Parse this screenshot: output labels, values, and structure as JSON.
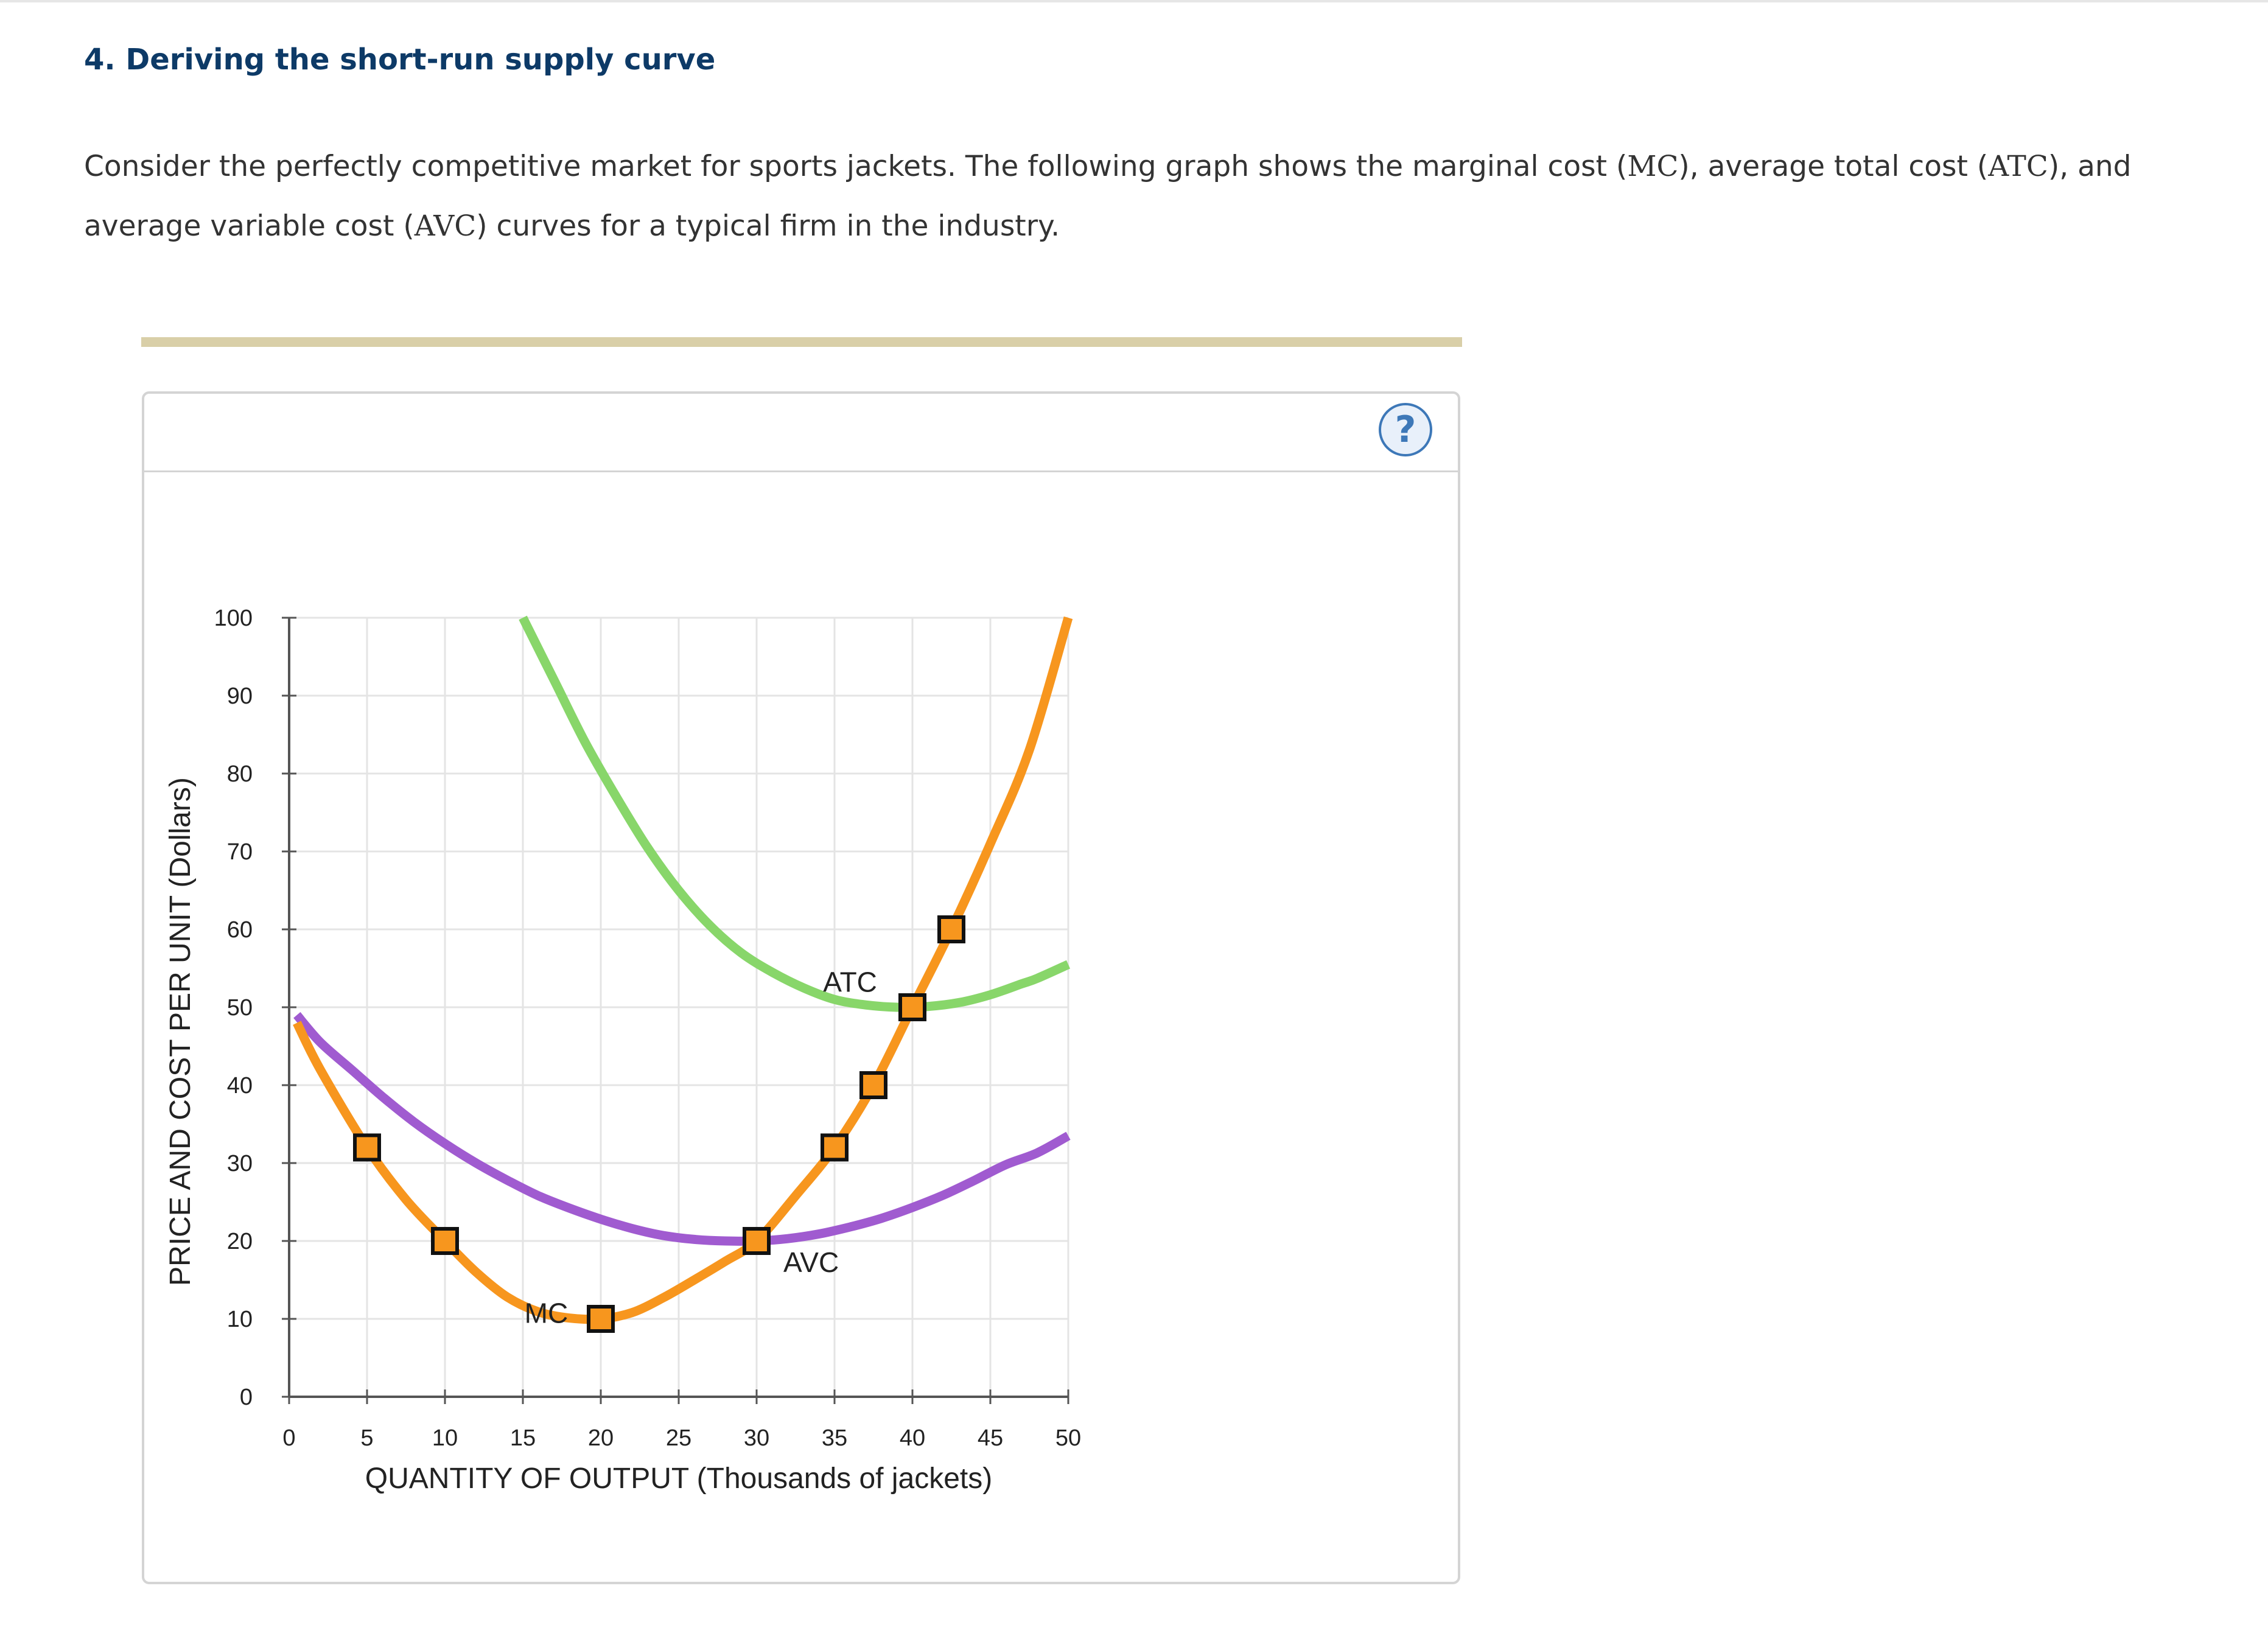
{
  "question": {
    "title": "4. Deriving the short-run supply curve",
    "line1_a": "Consider the perfectly competitive market for sports jackets. The following graph shows the marginal cost (",
    "mc_sym": "MC",
    "line1_b": "), average total cost (",
    "atc_sym": "ATC",
    "line1_c": "), and average variable cost (",
    "avc_sym": "AVC",
    "line1_d": ") curves for a typical firm in the industry."
  },
  "help": {
    "label": "?"
  },
  "chart_data": {
    "type": "line",
    "title": "",
    "xlabel": "QUANTITY OF OUTPUT (Thousands of jackets)",
    "ylabel": "PRICE AND COST PER UNIT (Dollars)",
    "xlim": [
      0,
      50
    ],
    "ylim": [
      0,
      100
    ],
    "x_ticks": [
      0,
      5,
      10,
      15,
      20,
      25,
      30,
      35,
      40,
      45,
      50
    ],
    "y_ticks": [
      0,
      10,
      20,
      30,
      40,
      50,
      60,
      70,
      80,
      90,
      100
    ],
    "grid": true,
    "colors": {
      "MC": "#f7961e",
      "ATC": "#88d66a",
      "AVC": "#a05bd0",
      "marker": "#f7961e"
    },
    "series": [
      {
        "name": "ATC",
        "label_at": [
          36,
          52
        ],
        "points": [
          [
            15,
            100
          ],
          [
            17,
            92
          ],
          [
            19,
            84
          ],
          [
            21,
            77
          ],
          [
            23,
            70.5
          ],
          [
            25,
            65
          ],
          [
            27,
            60.5
          ],
          [
            29,
            57
          ],
          [
            31,
            54.5
          ],
          [
            33,
            52.5
          ],
          [
            35,
            51
          ],
          [
            37,
            50.3
          ],
          [
            39,
            50
          ],
          [
            41,
            50.1
          ],
          [
            43,
            50.6
          ],
          [
            45,
            51.6
          ],
          [
            47,
            53
          ],
          [
            48,
            53.7
          ],
          [
            50,
            55.5
          ]
        ]
      },
      {
        "name": "AVC",
        "label_at": [
          33.5,
          16
        ],
        "points": [
          [
            0.5,
            49
          ],
          [
            2,
            45.5
          ],
          [
            4,
            42
          ],
          [
            6,
            38.5
          ],
          [
            8,
            35.3
          ],
          [
            10,
            32.5
          ],
          [
            12,
            30
          ],
          [
            14,
            27.8
          ],
          [
            16,
            25.8
          ],
          [
            18,
            24.2
          ],
          [
            20,
            22.8
          ],
          [
            22,
            21.6
          ],
          [
            24,
            20.7
          ],
          [
            26,
            20.2
          ],
          [
            28,
            20
          ],
          [
            30,
            20
          ],
          [
            32,
            20.3
          ],
          [
            34,
            20.9
          ],
          [
            36,
            21.8
          ],
          [
            38,
            22.9
          ],
          [
            40,
            24.3
          ],
          [
            42,
            25.9
          ],
          [
            44,
            27.8
          ],
          [
            46,
            29.8
          ],
          [
            48,
            31.3
          ],
          [
            50,
            33.5
          ]
        ]
      },
      {
        "name": "MC",
        "label_at": [
          16.5,
          9.5
        ],
        "points": [
          [
            0.5,
            48
          ],
          [
            2,
            42
          ],
          [
            5,
            32
          ],
          [
            7.5,
            25.3
          ],
          [
            10,
            20
          ],
          [
            12,
            16
          ],
          [
            14,
            12.8
          ],
          [
            16,
            10.9
          ],
          [
            18,
            10.1
          ],
          [
            20,
            10
          ],
          [
            22,
            10.8
          ],
          [
            24,
            12.7
          ],
          [
            26,
            15
          ],
          [
            28,
            17.4
          ],
          [
            30,
            20
          ],
          [
            32.5,
            25.8
          ],
          [
            35,
            32
          ],
          [
            37.5,
            40
          ],
          [
            40,
            50
          ],
          [
            42.5,
            60
          ],
          [
            45,
            71
          ],
          [
            47.5,
            83
          ],
          [
            50,
            100
          ]
        ]
      }
    ],
    "markers": [
      {
        "x": 5,
        "y": 32
      },
      {
        "x": 10,
        "y": 20
      },
      {
        "x": 20,
        "y": 10
      },
      {
        "x": 30,
        "y": 20
      },
      {
        "x": 35,
        "y": 32
      },
      {
        "x": 37.5,
        "y": 40
      },
      {
        "x": 40,
        "y": 50
      },
      {
        "x": 42.5,
        "y": 60
      }
    ]
  }
}
